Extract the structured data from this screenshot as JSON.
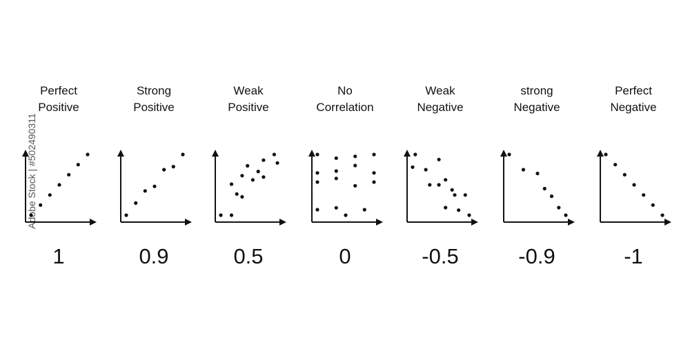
{
  "watermark": "Adobe Stock | #502490311",
  "colors": {
    "ink": "#111111",
    "background": "#ffffff"
  },
  "chart_data": [
    {
      "type": "scatter",
      "title_lines": [
        "Perfect",
        "Positive"
      ],
      "value_label": "1",
      "points": [
        [
          1,
          1
        ],
        [
          2,
          2
        ],
        [
          3,
          3
        ],
        [
          4,
          4
        ],
        [
          5,
          5
        ],
        [
          6,
          6
        ],
        [
          7,
          7
        ]
      ]
    },
    {
      "type": "scatter",
      "title_lines": [
        "Strong",
        "Positive"
      ],
      "value_label": "0.9",
      "points": [
        [
          1,
          1
        ],
        [
          2,
          1.8
        ],
        [
          3,
          2.6
        ],
        [
          4,
          2.9
        ],
        [
          5,
          4
        ],
        [
          6,
          4.2
        ],
        [
          7,
          5
        ]
      ]
    },
    {
      "type": "scatter",
      "title_lines": [
        "Weak",
        "Positive"
      ],
      "value_label": "0.5",
      "points": [
        [
          1,
          1
        ],
        [
          2,
          1
        ],
        [
          2.5,
          2.5
        ],
        [
          2,
          3.2
        ],
        [
          3,
          3.8
        ],
        [
          3,
          2.3
        ],
        [
          3.5,
          4.5
        ],
        [
          4,
          3.5
        ],
        [
          4.5,
          4.1
        ],
        [
          5,
          3.7
        ],
        [
          5,
          4.9
        ],
        [
          6,
          5.3
        ],
        [
          6.3,
          4.7
        ]
      ]
    },
    {
      "type": "scatter",
      "title_lines": [
        "No",
        "Correlation"
      ],
      "value_label": "0",
      "points": [
        [
          1,
          4.8
        ],
        [
          2,
          4.6
        ],
        [
          3,
          4.7
        ],
        [
          4,
          4.8
        ],
        [
          1,
          3.8
        ],
        [
          2,
          3.9
        ],
        [
          3,
          4.2
        ],
        [
          4,
          3.8
        ],
        [
          1,
          3.3
        ],
        [
          2,
          3.5
        ],
        [
          3,
          3.1
        ],
        [
          4,
          3.3
        ],
        [
          1,
          1.8
        ],
        [
          2,
          1.9
        ],
        [
          2.5,
          1.5
        ],
        [
          3.5,
          1.8
        ]
      ]
    },
    {
      "type": "scatter",
      "title_lines": [
        "Weak",
        "Negative"
      ],
      "value_label": "-0.5",
      "points": [
        [
          1,
          4.9
        ],
        [
          1.2,
          5.4
        ],
        [
          2,
          4.8
        ],
        [
          3,
          5.2
        ],
        [
          3.5,
          4.4
        ],
        [
          2.3,
          4.2
        ],
        [
          3,
          4.2
        ],
        [
          4,
          4
        ],
        [
          4.2,
          3.8
        ],
        [
          3.5,
          3.3
        ],
        [
          4.5,
          3.2
        ],
        [
          5,
          3.8
        ],
        [
          5.3,
          3
        ]
      ]
    },
    {
      "type": "scatter",
      "title_lines": [
        "strong",
        "Negative"
      ],
      "value_label": "-0.9",
      "points": [
        [
          1,
          5
        ],
        [
          2,
          4.2
        ],
        [
          3,
          4
        ],
        [
          3.5,
          3.2
        ],
        [
          4,
          2.8
        ],
        [
          4.5,
          2.2
        ],
        [
          5,
          1.8
        ]
      ]
    },
    {
      "type": "scatter",
      "title_lines": [
        "Perfect",
        "Negative"
      ],
      "value_label": "-1",
      "points": [
        [
          1,
          7
        ],
        [
          2,
          6
        ],
        [
          3,
          5
        ],
        [
          4,
          4
        ],
        [
          5,
          3
        ],
        [
          6,
          2
        ],
        [
          7,
          1
        ]
      ]
    }
  ]
}
